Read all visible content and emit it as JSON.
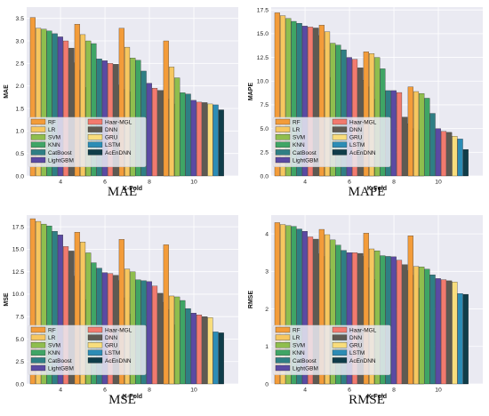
{
  "chart_data": [
    {
      "type": "bar",
      "caption": "MAE",
      "xlabel": "K-Fold",
      "ylabel": "MAE",
      "ylim": [
        0,
        3.75
      ],
      "yticks": [
        0.0,
        0.5,
        1.0,
        1.5,
        2.0,
        2.5,
        3.0,
        3.5
      ],
      "ytick_labels": [
        "0.0",
        "0.5",
        "1.0",
        "1.5",
        "2.0",
        "2.5",
        "3.0",
        "3.5"
      ],
      "categories": [
        "4",
        "6",
        "8",
        "10"
      ],
      "grid": true,
      "legend_position": "bottom-left",
      "series": [
        {
          "name": "RF",
          "color": "#f39c3a",
          "values": [
            3.52,
            3.37,
            3.28,
            3.0
          ]
        },
        {
          "name": "LR",
          "color": "#f6c760",
          "values": [
            3.28,
            3.14,
            2.86,
            2.42
          ]
        },
        {
          "name": "SVM",
          "color": "#8fbe4e",
          "values": [
            3.26,
            3.0,
            2.62,
            2.18
          ]
        },
        {
          "name": "KNN",
          "color": "#3fa565",
          "values": [
            3.22,
            2.94,
            2.57,
            1.85
          ]
        },
        {
          "name": "CatBoost",
          "color": "#2f7f84",
          "values": [
            3.16,
            2.6,
            2.33,
            1.82
          ]
        },
        {
          "name": "LightGBM",
          "color": "#5b4aa3",
          "values": [
            3.09,
            2.56,
            2.06,
            1.68
          ]
        },
        {
          "name": "Haar-MGL",
          "color": "#f27a6e",
          "values": [
            3.0,
            2.5,
            1.95,
            1.64
          ]
        },
        {
          "name": "DNN",
          "color": "#5e5a52",
          "values": [
            2.84,
            2.48,
            1.9,
            1.63
          ]
        },
        {
          "name": "GRU",
          "color": "#f8dd7c",
          "values": [
            2.51,
            2.02,
            1.9,
            1.6
          ]
        },
        {
          "name": "LSTM",
          "color": "#2b8cb5",
          "values": [
            2.35,
            1.92,
            1.71,
            1.58
          ]
        },
        {
          "name": "AcEnDNN",
          "color": "#0f3d4a",
          "values": [
            1.97,
            1.87,
            1.6,
            1.47
          ]
        }
      ]
    },
    {
      "type": "bar",
      "caption": "MAPE",
      "xlabel": "K-Fold",
      "ylabel": "MAPE",
      "ylim": [
        0,
        17.8
      ],
      "yticks": [
        0.0,
        2.5,
        5.0,
        7.5,
        10.0,
        12.5,
        15.0,
        17.5
      ],
      "ytick_labels": [
        "0.0",
        "2.5",
        "5.0",
        "7.5",
        "10.0",
        "12.5",
        "15.0",
        "17.5"
      ],
      "categories": [
        "4",
        "6",
        "8",
        "10"
      ],
      "grid": true,
      "legend_position": "bottom-left",
      "series": [
        {
          "name": "RF",
          "color": "#f39c3a",
          "values": [
            17.2,
            15.9,
            13.1,
            9.4
          ]
        },
        {
          "name": "LR",
          "color": "#f6c760",
          "values": [
            16.9,
            15.2,
            12.9,
            8.9
          ]
        },
        {
          "name": "SVM",
          "color": "#8fbe4e",
          "values": [
            16.6,
            14.0,
            12.5,
            8.7
          ]
        },
        {
          "name": "KNN",
          "color": "#3fa565",
          "values": [
            16.3,
            13.8,
            11.3,
            8.2
          ]
        },
        {
          "name": "CatBoost",
          "color": "#2f7f84",
          "values": [
            16.1,
            13.3,
            9.0,
            6.6
          ]
        },
        {
          "name": "LightGBM",
          "color": "#5b4aa3",
          "values": [
            15.8,
            12.5,
            9.0,
            5.0
          ]
        },
        {
          "name": "Haar-MGL",
          "color": "#f27a6e",
          "values": [
            15.7,
            12.3,
            8.8,
            4.7
          ]
        },
        {
          "name": "DNN",
          "color": "#5e5a52",
          "values": [
            15.6,
            11.4,
            6.2,
            4.6
          ]
        },
        {
          "name": "GRU",
          "color": "#f8dd7c",
          "values": [
            14.8,
            10.1,
            5.5,
            4.2
          ]
        },
        {
          "name": "LSTM",
          "color": "#2b8cb5",
          "values": [
            13.3,
            9.4,
            5.0,
            3.9
          ]
        },
        {
          "name": "AcEnDNN",
          "color": "#0f3d4a",
          "values": [
            10.4,
            8.1,
            4.8,
            2.8
          ]
        }
      ]
    },
    {
      "type": "bar",
      "caption": "MSE",
      "xlabel": "K-Fold",
      "ylabel": "MSE",
      "ylim": [
        0,
        18.8
      ],
      "yticks": [
        0.0,
        2.5,
        5.0,
        7.5,
        10.0,
        12.5,
        15.0,
        17.5
      ],
      "ytick_labels": [
        "0.0",
        "2.5",
        "5.0",
        "7.5",
        "10.0",
        "12.5",
        "15.0",
        "17.5"
      ],
      "categories": [
        "4",
        "6",
        "8",
        "10"
      ],
      "grid": true,
      "legend_position": "bottom-left",
      "series": [
        {
          "name": "RF",
          "color": "#f39c3a",
          "values": [
            18.4,
            16.9,
            16.1,
            15.5
          ]
        },
        {
          "name": "LR",
          "color": "#f6c760",
          "values": [
            18.1,
            15.8,
            12.8,
            9.8
          ]
        },
        {
          "name": "SVM",
          "color": "#8fbe4e",
          "values": [
            17.8,
            14.6,
            12.5,
            9.7
          ]
        },
        {
          "name": "KNN",
          "color": "#3fa565",
          "values": [
            17.6,
            13.5,
            11.6,
            9.3
          ]
        },
        {
          "name": "CatBoost",
          "color": "#2f7f84",
          "values": [
            17.0,
            12.9,
            11.5,
            8.4
          ]
        },
        {
          "name": "LightGBM",
          "color": "#5b4aa3",
          "values": [
            16.6,
            12.4,
            11.4,
            7.9
          ]
        },
        {
          "name": "Haar-MGL",
          "color": "#f27a6e",
          "values": [
            15.3,
            12.3,
            10.9,
            7.7
          ]
        },
        {
          "name": "DNN",
          "color": "#5e5a52",
          "values": [
            14.8,
            12.1,
            10.1,
            7.5
          ]
        },
        {
          "name": "GRU",
          "color": "#f8dd7c",
          "values": [
            12.0,
            11.5,
            9.1,
            7.4
          ]
        },
        {
          "name": "LSTM",
          "color": "#2b8cb5",
          "values": [
            11.5,
            9.6,
            8.3,
            5.8
          ]
        },
        {
          "name": "AcEnDNN",
          "color": "#0f3d4a",
          "values": [
            9.4,
            7.8,
            6.6,
            5.7
          ]
        }
      ]
    },
    {
      "type": "bar",
      "caption": "RMSE",
      "xlabel": "K-Fold",
      "ylabel": "RMSE",
      "ylim": [
        0,
        4.5
      ],
      "yticks": [
        0,
        1,
        2,
        3,
        4
      ],
      "ytick_labels": [
        "0",
        "1",
        "2",
        "3",
        "4"
      ],
      "categories": [
        "4",
        "6",
        "8",
        "10"
      ],
      "grid": true,
      "legend_position": "bottom-left",
      "series": [
        {
          "name": "RF",
          "color": "#f39c3a",
          "values": [
            4.3,
            4.12,
            4.02,
            3.95
          ]
        },
        {
          "name": "LR",
          "color": "#f6c760",
          "values": [
            4.25,
            3.98,
            3.6,
            3.13
          ]
        },
        {
          "name": "SVM",
          "color": "#8fbe4e",
          "values": [
            4.22,
            3.84,
            3.55,
            3.12
          ]
        },
        {
          "name": "KNN",
          "color": "#3fa565",
          "values": [
            4.2,
            3.7,
            3.42,
            3.06
          ]
        },
        {
          "name": "CatBoost",
          "color": "#2f7f84",
          "values": [
            4.13,
            3.56,
            3.4,
            2.91
          ]
        },
        {
          "name": "LightGBM",
          "color": "#5b4aa3",
          "values": [
            4.07,
            3.5,
            3.39,
            2.81
          ]
        },
        {
          "name": "Haar-MGL",
          "color": "#f27a6e",
          "values": [
            3.92,
            3.5,
            3.3,
            2.78
          ]
        },
        {
          "name": "DNN",
          "color": "#5e5a52",
          "values": [
            3.86,
            3.48,
            3.18,
            2.75
          ]
        },
        {
          "name": "GRU",
          "color": "#f8dd7c",
          "values": [
            3.47,
            3.4,
            3.02,
            2.72
          ]
        },
        {
          "name": "LSTM",
          "color": "#2b8cb5",
          "values": [
            3.4,
            3.1,
            2.9,
            2.41
          ]
        },
        {
          "name": "AcEnDNN",
          "color": "#0f3d4a",
          "values": [
            3.06,
            2.79,
            2.56,
            2.39
          ]
        }
      ]
    }
  ]
}
